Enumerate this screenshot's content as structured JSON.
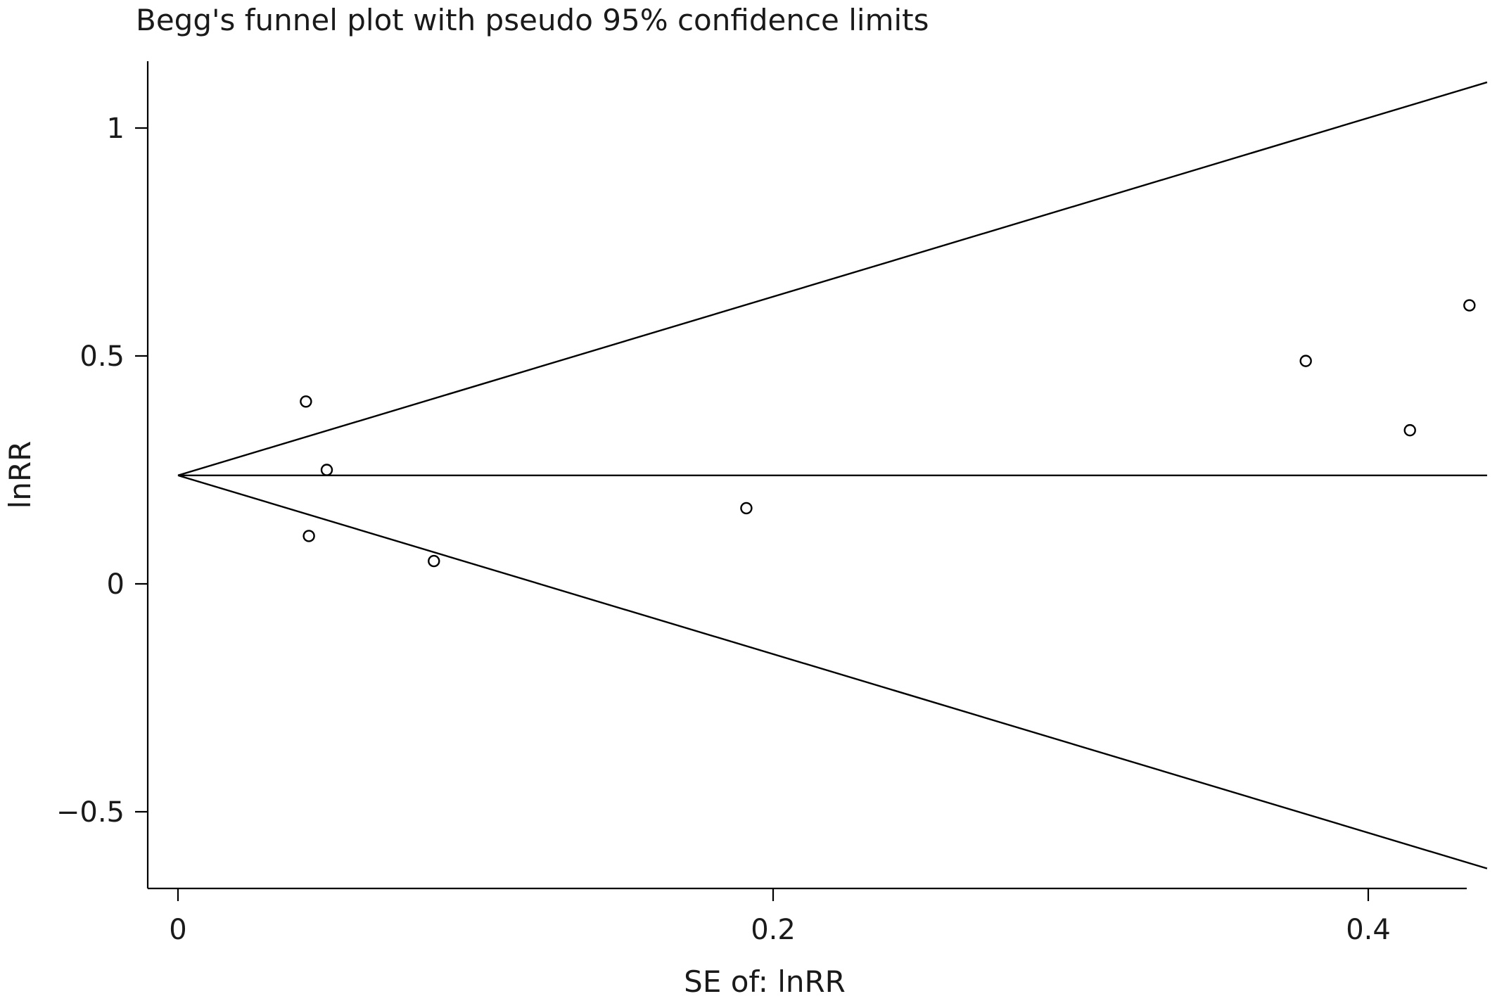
{
  "chart_data": {
    "type": "scatter",
    "title": "Begg's funnel plot with pseudo 95% confidence limits",
    "xlabel": "SE of: lnRR",
    "ylabel": "lnRR",
    "xlim": [
      -0.01,
      0.435
    ],
    "ylim": [
      -0.67,
      1.15
    ],
    "x_ticks": [
      {
        "value": 0,
        "label": "0"
      },
      {
        "value": 0.2,
        "label": "0.2"
      },
      {
        "value": 0.4,
        "label": "0.4"
      }
    ],
    "y_ticks": [
      {
        "value": 1,
        "label": "1"
      },
      {
        "value": 0.5,
        "label": "0.5"
      },
      {
        "value": 0,
        "label": "0"
      },
      {
        "value": -0.5,
        "label": "−0.5"
      }
    ],
    "pooled_estimate": 0.238,
    "pseudo_ci": {
      "z": 1.96,
      "se_max": 0.43
    },
    "points": [
      {
        "x": 0.043,
        "y": 0.4
      },
      {
        "x": 0.044,
        "y": 0.105
      },
      {
        "x": 0.05,
        "y": 0.25
      },
      {
        "x": 0.086,
        "y": 0.05
      },
      {
        "x": 0.191,
        "y": 0.166
      },
      {
        "x": 0.379,
        "y": 0.489
      },
      {
        "x": 0.414,
        "y": 0.337
      },
      {
        "x": 0.434,
        "y": 0.611
      }
    ],
    "grid": false,
    "legend": "none"
  }
}
